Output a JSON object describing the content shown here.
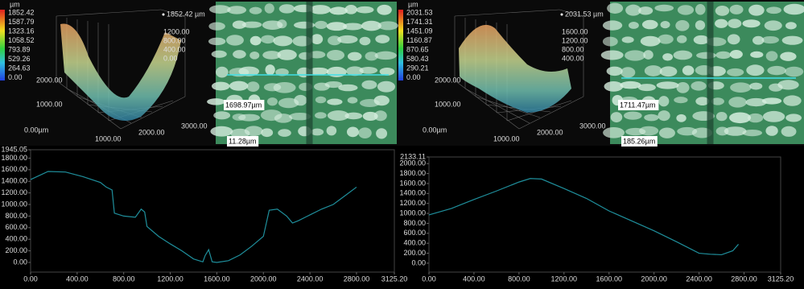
{
  "panels": [
    {
      "unit": "µm",
      "colorbar": [
        "1852.42",
        "1587.79",
        "1323.16",
        "1058.52",
        "793.89",
        "529.26",
        "264.63",
        "0.00"
      ],
      "peak": "1852.42 µm",
      "z_ticks": [
        "1200.00",
        "800.00",
        "400.00",
        "0.00"
      ],
      "y_ticks": [
        "2000.00",
        "1000.00",
        "0.00µm"
      ],
      "x_ticks": [
        "1000.00",
        "2000.00",
        "3000.00"
      ]
    },
    {
      "labels": [
        "1698.97µm",
        "11.28µm"
      ]
    },
    {
      "unit": "µm",
      "colorbar": [
        "2031.53",
        "1741.31",
        "1451.09",
        "1160.87",
        "870.65",
        "580.43",
        "290.21",
        "0.00"
      ],
      "peak": "2031.53 µm",
      "z_ticks": [
        "1600.00",
        "1200.00",
        "800.00",
        "400.00"
      ],
      "y_ticks": [
        "2000.00",
        "1000.00",
        "0.00µm"
      ],
      "x_ticks": [
        "1000.00",
        "2000.00",
        "3000.00"
      ]
    },
    {
      "labels": [
        "1711.47µm",
        "185.26µm"
      ]
    }
  ],
  "chart_data": [
    {
      "type": "line",
      "color": "#1f8f9c",
      "x": [
        0,
        150,
        300,
        450,
        600,
        650,
        700,
        720,
        800,
        900,
        950,
        980,
        1000,
        1100,
        1200,
        1300,
        1400,
        1480,
        1500,
        1530,
        1560,
        1600,
        1700,
        1800,
        1900,
        2000,
        2050,
        2120,
        2200,
        2250,
        2300,
        2400,
        2500,
        2600,
        2700,
        2800
      ],
      "values": [
        1430,
        1570,
        1560,
        1480,
        1380,
        1300,
        1250,
        850,
        800,
        780,
        920,
        870,
        620,
        450,
        320,
        200,
        60,
        10,
        120,
        220,
        10,
        0,
        30,
        130,
        280,
        450,
        900,
        920,
        800,
        680,
        720,
        820,
        920,
        1000,
        1150,
        1300
      ],
      "xlim": [
        0,
        3125.2
      ],
      "ylim": [
        -167,
        1945.05
      ],
      "xticks": [
        {
          "value": 0,
          "label": "0.00"
        },
        {
          "value": 400,
          "label": "400.00"
        },
        {
          "value": 800,
          "label": "800.00"
        },
        {
          "value": 1200,
          "label": "1200.00"
        },
        {
          "value": 1600,
          "label": "1600.00"
        },
        {
          "value": 2000,
          "label": "2000.00"
        },
        {
          "value": 2400,
          "label": "2400.00"
        },
        {
          "value": 2800,
          "label": "2800.00"
        },
        {
          "value": 3125.2,
          "label": "3125.20"
        }
      ],
      "yticks": [
        {
          "value": 0,
          "label": "0.00"
        },
        {
          "value": 200,
          "label": "200.00"
        },
        {
          "value": 400,
          "label": "400.00"
        },
        {
          "value": 600,
          "label": "600.00"
        },
        {
          "value": 800,
          "label": "800.00"
        },
        {
          "value": 1000,
          "label": "1000.00"
        },
        {
          "value": 1200,
          "label": "1200.00"
        },
        {
          "value": 1400,
          "label": "1400.00"
        },
        {
          "value": 1600,
          "label": "1600.00"
        },
        {
          "value": 1800,
          "label": "1800.00"
        },
        1945.05
      ]
    },
    {
      "type": "line",
      "color": "#1f8f9c",
      "x": [
        0,
        200,
        400,
        600,
        800,
        900,
        1000,
        1200,
        1400,
        1600,
        1800,
        2000,
        2200,
        2400,
        2500,
        2600,
        2700,
        2750
      ],
      "values": [
        970,
        1100,
        1280,
        1450,
        1630,
        1700,
        1690,
        1500,
        1300,
        1050,
        850,
        650,
        430,
        200,
        180,
        170,
        250,
        380
      ],
      "xlim": [
        0,
        3125.2
      ],
      "ylim": [
        -179,
        2133.11
      ],
      "xticks": [
        {
          "value": 0,
          "label": "0.00"
        },
        {
          "value": 400,
          "label": "400.00"
        },
        {
          "value": 800,
          "label": "800.00"
        },
        {
          "value": 1200,
          "label": "1200.00"
        },
        {
          "value": 1600,
          "label": "1600.00"
        },
        {
          "value": 2000,
          "label": "2000.00"
        },
        {
          "value": 2400,
          "label": "2400.00"
        },
        {
          "value": 2800,
          "label": "2800.00"
        },
        {
          "value": 3125.2,
          "label": "3125.20"
        }
      ],
      "yticks": [
        {
          "value": 0,
          "label": "0.00"
        },
        {
          "value": 200,
          "label": "200.00"
        },
        {
          "value": 400,
          "label": "400.00"
        },
        {
          "value": 600,
          "label": "600.00"
        },
        {
          "value": 800,
          "label": "800.00"
        },
        {
          "value": 1000,
          "label": "1000.00"
        },
        {
          "value": 1200,
          "label": "1200.00"
        },
        {
          "value": 1400,
          "label": "1400.00"
        },
        {
          "value": 1600,
          "label": "1600.00"
        },
        {
          "value": 1800,
          "label": "1800.00"
        },
        {
          "value": 2000,
          "label": "2000.00"
        },
        2133.11
      ]
    }
  ]
}
